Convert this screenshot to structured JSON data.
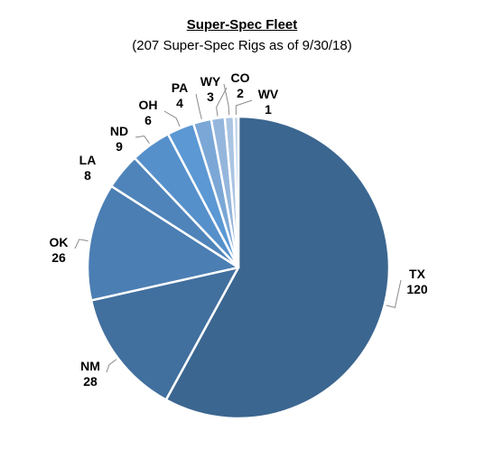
{
  "chart_data": {
    "type": "pie",
    "title": "Super-Spec Fleet",
    "subtitle": "(207 Super-Spec Rigs as of 9/30/18)",
    "slices": [
      {
        "label": "TX",
        "value": 120,
        "color": "#3b6690"
      },
      {
        "label": "NM",
        "value": 28,
        "color": "#416f9e"
      },
      {
        "label": "OK",
        "value": 26,
        "color": "#4b7eb3"
      },
      {
        "label": "LA",
        "value": 8,
        "color": "#4f84ba"
      },
      {
        "label": "ND",
        "value": 9,
        "color": "#5690cb"
      },
      {
        "label": "OH",
        "value": 6,
        "color": "#5b98d4"
      },
      {
        "label": "PA",
        "value": 4,
        "color": "#7ba7d6"
      },
      {
        "label": "WY",
        "value": 3,
        "color": "#95b6dc"
      },
      {
        "label": "CO",
        "value": 2,
        "color": "#aac4e2"
      },
      {
        "label": "WV",
        "value": 1,
        "color": "#bdd2ea"
      }
    ],
    "start_angle_deg": 0,
    "direction": "clockwise"
  }
}
